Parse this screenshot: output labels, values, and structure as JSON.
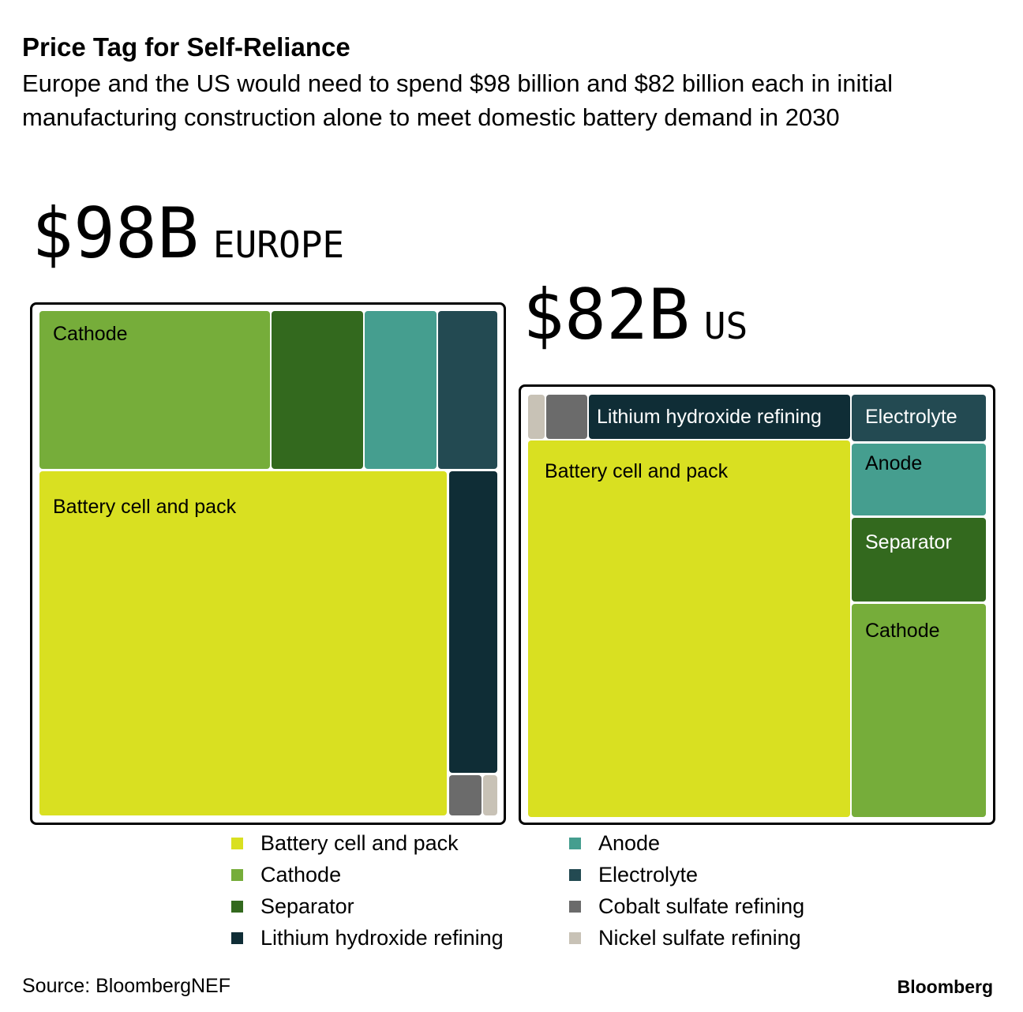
{
  "title": "Price Tag for Self-Reliance",
  "subtitle": "Europe and the US would need to spend $98 billion and $82 billion each in initial manufacturing construction alone to meet domestic battery demand in 2030",
  "europe": {
    "amount": "$98B",
    "region": "EUROPE"
  },
  "us": {
    "amount": "$82B",
    "region": "US"
  },
  "source": "Source: BloombergNEF",
  "brand": "Bloomberg",
  "legend": [
    {
      "label": "Battery cell and pack",
      "color": "#d9e021"
    },
    {
      "label": "Cathode",
      "color": "#76ad3a"
    },
    {
      "label": "Separator",
      "color": "#33691e"
    },
    {
      "label": "Lithium hydroxide refining",
      "color": "#0f2d36"
    },
    {
      "label": "Anode",
      "color": "#459e8f"
    },
    {
      "label": "Electrolyte",
      "color": "#234a52"
    },
    {
      "label": "Cobalt sulfate refining",
      "color": "#6b6b6b"
    },
    {
      "label": "Nickel sulfate refining",
      "color": "#c8c2b6"
    }
  ],
  "tile_labels": {
    "europe": {
      "battery": "Battery cell and pack",
      "cathode": "Cathode"
    },
    "us": {
      "battery": "Battery cell and pack",
      "cathode": "Cathode",
      "separator": "Separator",
      "anode": "Anode",
      "electrolyte": "Electrolyte",
      "lithium": "Lithium hydroxide refining"
    }
  },
  "chart_data": [
    {
      "type": "treemap",
      "region": "EUROPE",
      "total": 98,
      "unit": "$B",
      "series": [
        {
          "name": "Battery cell and pack",
          "value": 68.0
        },
        {
          "name": "Cathode",
          "value": 12.6
        },
        {
          "name": "Separator",
          "value": 5.0
        },
        {
          "name": "Anode",
          "value": 4.0
        },
        {
          "name": "Electrolyte",
          "value": 3.2
        },
        {
          "name": "Lithium hydroxide refining",
          "value": 3.8
        },
        {
          "name": "Cobalt sulfate refining",
          "value": 0.9
        },
        {
          "name": "Nickel sulfate refining",
          "value": 0.5
        }
      ]
    },
    {
      "type": "treemap",
      "region": "US",
      "total": 82,
      "unit": "$B",
      "series": [
        {
          "name": "Battery cell and pack",
          "value": 52.5
        },
        {
          "name": "Cathode",
          "value": 9.6
        },
        {
          "name": "Separator",
          "value": 4.5
        },
        {
          "name": "Anode",
          "value": 4.0
        },
        {
          "name": "Electrolyte",
          "value": 2.4
        },
        {
          "name": "Lithium hydroxide refining",
          "value": 6.8
        },
        {
          "name": "Cobalt sulfate refining",
          "value": 1.4
        },
        {
          "name": "Nickel sulfate refining",
          "value": 0.8
        }
      ]
    }
  ]
}
